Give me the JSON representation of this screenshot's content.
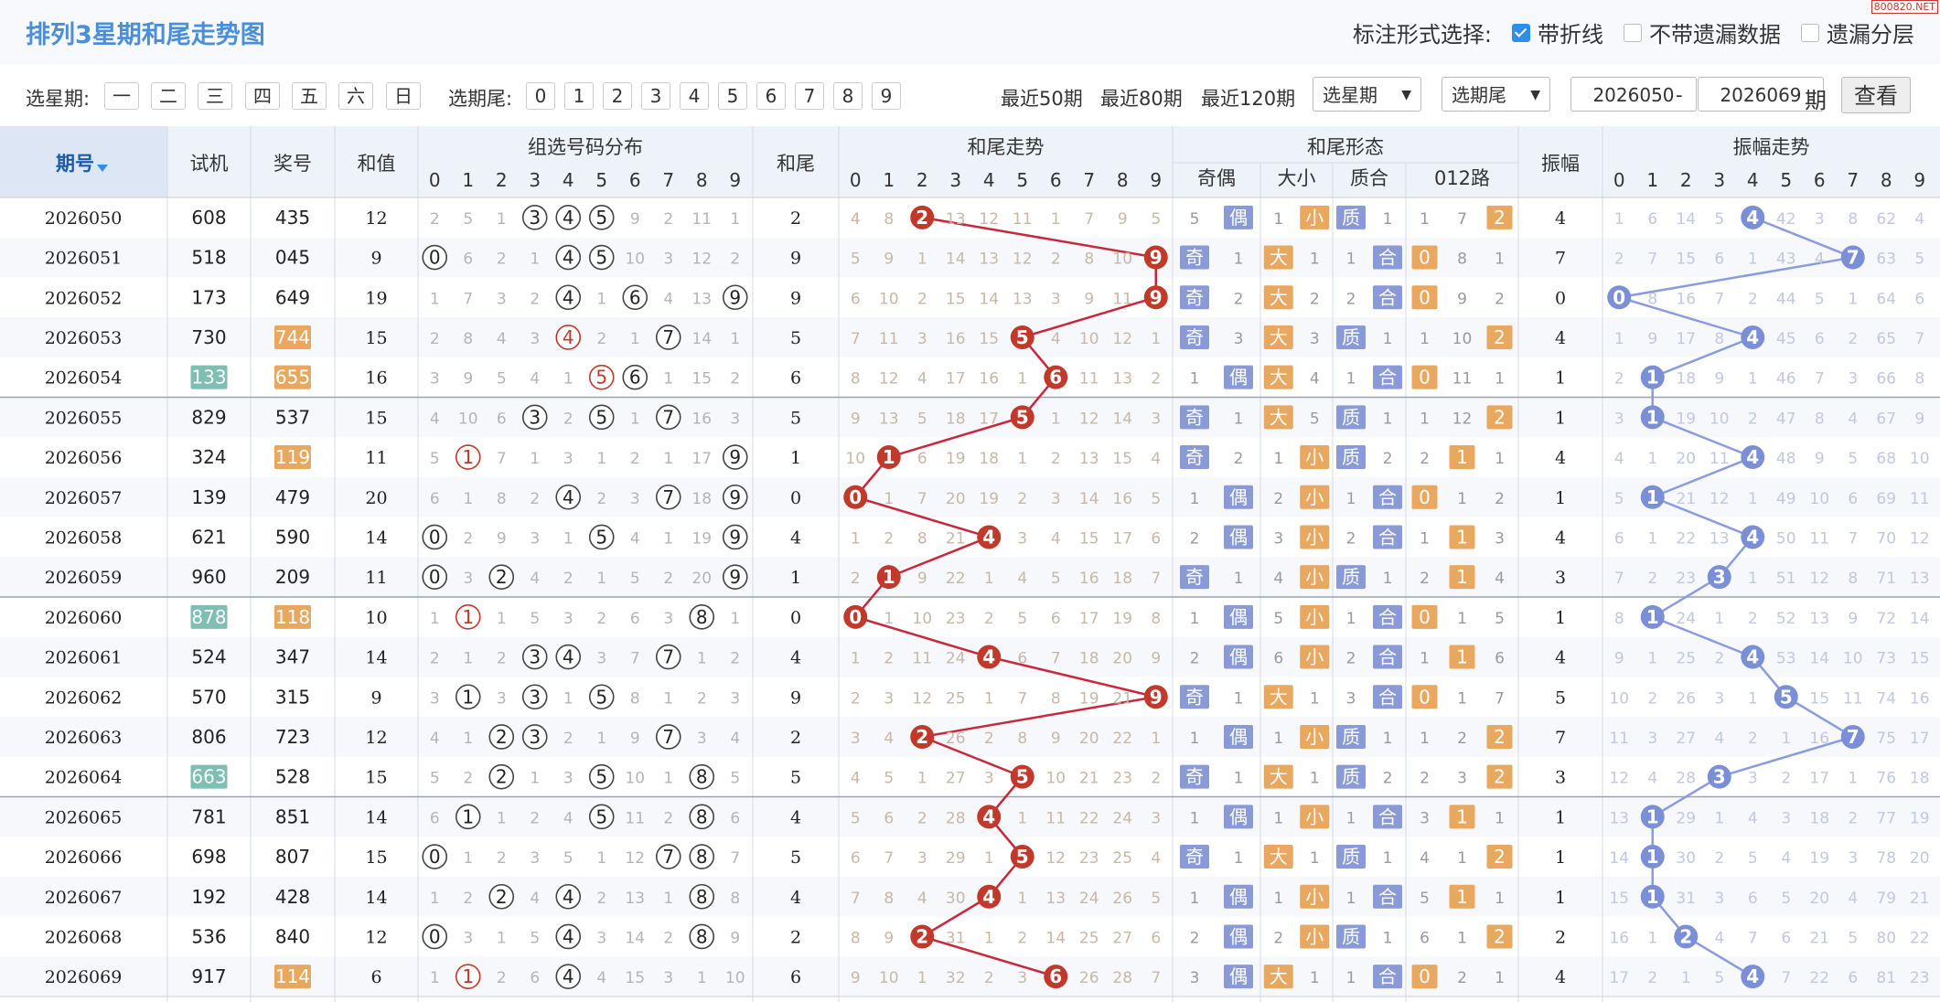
{
  "title": "排列3星期和尾走势图",
  "mark_options": {
    "label": "标注形式选择:",
    "items": [
      {
        "label": "带折线",
        "checked": true
      },
      {
        "label": "不带遗漏数据",
        "checked": false
      },
      {
        "label": "遗漏分层",
        "checked": false
      }
    ]
  },
  "watermark": "800820.NET",
  "toolbar": {
    "weekday_label": "选星期:",
    "weekdays": [
      "一",
      "二",
      "三",
      "四",
      "五",
      "六",
      "日"
    ],
    "tail_label": "选期尾:",
    "tails": [
      "0",
      "1",
      "2",
      "3",
      "4",
      "5",
      "6",
      "7",
      "8",
      "9"
    ],
    "recent": [
      "最近50期",
      "最近80期",
      "最近120期"
    ],
    "select_weekday": "选星期",
    "select_tail": "选期尾",
    "from": "2026050",
    "dash": "-",
    "to": "2026069",
    "period_label": "期",
    "query": "查看"
  },
  "headers": {
    "issue": "期号",
    "test": "试机",
    "prize": "奖号",
    "sum": "和值",
    "group_dist": "组选号码分布",
    "tail": "和尾",
    "tail_trend": "和尾走势",
    "tail_form": "和尾形态",
    "odd_even": "奇偶",
    "big_small": "大小",
    "prime": "质合",
    "road": "012路",
    "amp": "振幅",
    "amp_trend": "振幅走势",
    "digits": [
      "0",
      "1",
      "2",
      "3",
      "4",
      "5",
      "6",
      "7",
      "8",
      "9"
    ]
  },
  "colors": {
    "red_ball": "#c0392b",
    "blue_ball": "#7b8fd6",
    "orange_tag": "#e8a860",
    "blue_tag": "#8a9ad6",
    "teal_tag": "#7fbfb3"
  },
  "rows": [
    {
      "issue": "2026050",
      "test": "608",
      "prize": "435",
      "sum": "12",
      "tail": "2",
      "amp": "4",
      "dist": [
        "2",
        "5",
        "1",
        "3",
        "4",
        "5",
        "9",
        "2",
        "11",
        "1"
      ],
      "tt": [
        "4",
        "8",
        "2",
        "13",
        "12",
        "11",
        "1",
        "7",
        "9",
        "5"
      ],
      "oe": [
        "5",
        "偶"
      ],
      "bs": [
        "1",
        "小"
      ],
      "pc": [
        "质",
        "1"
      ],
      "rd": [
        "1",
        "7",
        "2"
      ],
      "at": [
        "1",
        "6",
        "14",
        "5",
        "4",
        "42",
        "3",
        "8",
        "62",
        "4"
      ]
    },
    {
      "issue": "2026051",
      "test": "518",
      "prize": "045",
      "sum": "9",
      "tail": "9",
      "amp": "7",
      "dist": [
        "0",
        "6",
        "2",
        "1",
        "4",
        "5",
        "10",
        "3",
        "12",
        "2"
      ],
      "tt": [
        "5",
        "9",
        "1",
        "14",
        "13",
        "12",
        "2",
        "8",
        "10",
        "9"
      ],
      "oe": [
        "奇",
        "1"
      ],
      "bs": [
        "大",
        "1"
      ],
      "pc": [
        "1",
        "合"
      ],
      "rd": [
        "0",
        "8",
        "1"
      ],
      "at": [
        "2",
        "7",
        "15",
        "6",
        "1",
        "43",
        "4",
        "7",
        "63",
        "5"
      ]
    },
    {
      "issue": "2026052",
      "test": "173",
      "prize": "649",
      "sum": "19",
      "tail": "9",
      "amp": "0",
      "dist": [
        "1",
        "7",
        "3",
        "2",
        "4",
        "1",
        "6",
        "4",
        "13",
        "9"
      ],
      "tt": [
        "6",
        "10",
        "2",
        "15",
        "14",
        "13",
        "3",
        "9",
        "11",
        "9"
      ],
      "oe": [
        "奇",
        "2"
      ],
      "bs": [
        "大",
        "2"
      ],
      "pc": [
        "2",
        "合"
      ],
      "rd": [
        "0",
        "9",
        "2"
      ],
      "at": [
        "0",
        "8",
        "16",
        "7",
        "2",
        "44",
        "5",
        "1",
        "64",
        "6"
      ]
    },
    {
      "issue": "2026053",
      "test": "730",
      "prize": "744",
      "sum": "15",
      "tail": "5",
      "amp": "4",
      "dist": [
        "2",
        "8",
        "4",
        "3",
        "4",
        "2",
        "1",
        "7",
        "14",
        "1"
      ],
      "tt": [
        "7",
        "11",
        "3",
        "16",
        "15",
        "5",
        "4",
        "10",
        "12",
        "1"
      ],
      "oe": [
        "奇",
        "3"
      ],
      "bs": [
        "大",
        "3"
      ],
      "pc": [
        "质",
        "1"
      ],
      "rd": [
        "1",
        "10",
        "2"
      ],
      "at": [
        "1",
        "9",
        "17",
        "8",
        "4",
        "45",
        "6",
        "2",
        "65",
        "7"
      ]
    },
    {
      "issue": "2026054",
      "test": "133",
      "prize": "655",
      "sum": "16",
      "tail": "6",
      "amp": "1",
      "dist": [
        "3",
        "9",
        "5",
        "4",
        "1",
        "5",
        "6",
        "1",
        "15",
        "2"
      ],
      "tt": [
        "8",
        "12",
        "4",
        "17",
        "16",
        "1",
        "6",
        "11",
        "13",
        "2"
      ],
      "oe": [
        "1",
        "偶"
      ],
      "bs": [
        "大",
        "4"
      ],
      "pc": [
        "1",
        "合"
      ],
      "rd": [
        "0",
        "11",
        "1"
      ],
      "at": [
        "2",
        "1",
        "18",
        "9",
        "1",
        "46",
        "7",
        "3",
        "66",
        "8"
      ]
    },
    {
      "issue": "2026055",
      "test": "829",
      "prize": "537",
      "sum": "15",
      "tail": "5",
      "amp": "1",
      "dist": [
        "4",
        "10",
        "6",
        "3",
        "2",
        "5",
        "1",
        "7",
        "16",
        "3"
      ],
      "tt": [
        "9",
        "13",
        "5",
        "18",
        "17",
        "5",
        "1",
        "12",
        "14",
        "3"
      ],
      "oe": [
        "奇",
        "1"
      ],
      "bs": [
        "大",
        "5"
      ],
      "pc": [
        "质",
        "1"
      ],
      "rd": [
        "1",
        "12",
        "2"
      ],
      "at": [
        "3",
        "1",
        "19",
        "10",
        "2",
        "47",
        "8",
        "4",
        "67",
        "9"
      ]
    },
    {
      "issue": "2026056",
      "test": "324",
      "prize": "119",
      "sum": "11",
      "tail": "1",
      "amp": "4",
      "dist": [
        "5",
        "1",
        "7",
        "1",
        "3",
        "1",
        "2",
        "1",
        "17",
        "9"
      ],
      "tt": [
        "10",
        "1",
        "6",
        "19",
        "18",
        "1",
        "2",
        "13",
        "15",
        "4"
      ],
      "oe": [
        "奇",
        "2"
      ],
      "bs": [
        "1",
        "小"
      ],
      "pc": [
        "质",
        "2"
      ],
      "rd": [
        "2",
        "1",
        "1"
      ],
      "at": [
        "4",
        "1",
        "20",
        "11",
        "4",
        "48",
        "9",
        "5",
        "68",
        "10"
      ]
    },
    {
      "issue": "2026057",
      "test": "139",
      "prize": "479",
      "sum": "20",
      "tail": "0",
      "amp": "1",
      "dist": [
        "6",
        "1",
        "8",
        "2",
        "4",
        "2",
        "3",
        "7",
        "18",
        "9"
      ],
      "tt": [
        "0",
        "1",
        "7",
        "20",
        "19",
        "2",
        "3",
        "14",
        "16",
        "5"
      ],
      "oe": [
        "1",
        "偶"
      ],
      "bs": [
        "2",
        "小"
      ],
      "pc": [
        "1",
        "合"
      ],
      "rd": [
        "0",
        "1",
        "2"
      ],
      "at": [
        "5",
        "1",
        "21",
        "12",
        "1",
        "49",
        "10",
        "6",
        "69",
        "11"
      ]
    },
    {
      "issue": "2026058",
      "test": "621",
      "prize": "590",
      "sum": "14",
      "tail": "4",
      "amp": "4",
      "dist": [
        "0",
        "2",
        "9",
        "3",
        "1",
        "5",
        "4",
        "1",
        "19",
        "9"
      ],
      "tt": [
        "1",
        "2",
        "8",
        "21",
        "4",
        "3",
        "4",
        "15",
        "17",
        "6"
      ],
      "oe": [
        "2",
        "偶"
      ],
      "bs": [
        "3",
        "小"
      ],
      "pc": [
        "2",
        "合"
      ],
      "rd": [
        "1",
        "1",
        "3"
      ],
      "at": [
        "6",
        "1",
        "22",
        "13",
        "4",
        "50",
        "11",
        "7",
        "70",
        "12"
      ]
    },
    {
      "issue": "2026059",
      "test": "960",
      "prize": "209",
      "sum": "11",
      "tail": "1",
      "amp": "3",
      "dist": [
        "0",
        "3",
        "2",
        "4",
        "2",
        "1",
        "5",
        "2",
        "20",
        "9"
      ],
      "tt": [
        "2",
        "1",
        "9",
        "22",
        "1",
        "4",
        "5",
        "16",
        "18",
        "7"
      ],
      "oe": [
        "奇",
        "1"
      ],
      "bs": [
        "4",
        "小"
      ],
      "pc": [
        "质",
        "1"
      ],
      "rd": [
        "2",
        "1",
        "4"
      ],
      "at": [
        "7",
        "2",
        "23",
        "3",
        "1",
        "51",
        "12",
        "8",
        "71",
        "13"
      ]
    },
    {
      "issue": "2026060",
      "test": "878",
      "prize": "118",
      "sum": "10",
      "tail": "0",
      "amp": "1",
      "dist": [
        "1",
        "1",
        "1",
        "5",
        "3",
        "2",
        "6",
        "3",
        "8",
        "1"
      ],
      "tt": [
        "0",
        "1",
        "10",
        "23",
        "2",
        "5",
        "6",
        "17",
        "19",
        "8"
      ],
      "oe": [
        "1",
        "偶"
      ],
      "bs": [
        "5",
        "小"
      ],
      "pc": [
        "1",
        "合"
      ],
      "rd": [
        "0",
        "1",
        "5"
      ],
      "at": [
        "8",
        "1",
        "24",
        "1",
        "2",
        "52",
        "13",
        "9",
        "72",
        "14"
      ]
    },
    {
      "issue": "2026061",
      "test": "524",
      "prize": "347",
      "sum": "14",
      "tail": "4",
      "amp": "4",
      "dist": [
        "2",
        "1",
        "2",
        "3",
        "4",
        "3",
        "7",
        "7",
        "1",
        "2"
      ],
      "tt": [
        "1",
        "2",
        "11",
        "24",
        "4",
        "6",
        "7",
        "18",
        "20",
        "9"
      ],
      "oe": [
        "2",
        "偶"
      ],
      "bs": [
        "6",
        "小"
      ],
      "pc": [
        "2",
        "合"
      ],
      "rd": [
        "1",
        "1",
        "6"
      ],
      "at": [
        "9",
        "1",
        "25",
        "2",
        "4",
        "53",
        "14",
        "10",
        "73",
        "15"
      ]
    },
    {
      "issue": "2026062",
      "test": "570",
      "prize": "315",
      "sum": "9",
      "tail": "9",
      "amp": "5",
      "dist": [
        "3",
        "1",
        "3",
        "3",
        "1",
        "5",
        "8",
        "1",
        "2",
        "3"
      ],
      "tt": [
        "2",
        "3",
        "12",
        "25",
        "1",
        "7",
        "8",
        "19",
        "21",
        "9"
      ],
      "oe": [
        "奇",
        "1"
      ],
      "bs": [
        "大",
        "1"
      ],
      "pc": [
        "3",
        "合"
      ],
      "rd": [
        "0",
        "1",
        "7"
      ],
      "at": [
        "10",
        "2",
        "26",
        "3",
        "1",
        "5",
        "15",
        "11",
        "74",
        "16"
      ]
    },
    {
      "issue": "2026063",
      "test": "806",
      "prize": "723",
      "sum": "12",
      "tail": "2",
      "amp": "7",
      "dist": [
        "4",
        "1",
        "2",
        "3",
        "2",
        "1",
        "9",
        "7",
        "3",
        "4"
      ],
      "tt": [
        "3",
        "4",
        "2",
        "26",
        "2",
        "8",
        "9",
        "20",
        "22",
        "1"
      ],
      "oe": [
        "1",
        "偶"
      ],
      "bs": [
        "1",
        "小"
      ],
      "pc": [
        "质",
        "1"
      ],
      "rd": [
        "1",
        "2",
        "2"
      ],
      "at": [
        "11",
        "3",
        "27",
        "4",
        "2",
        "1",
        "16",
        "7",
        "75",
        "17"
      ]
    },
    {
      "issue": "2026064",
      "test": "663",
      "prize": "528",
      "sum": "15",
      "tail": "5",
      "amp": "3",
      "dist": [
        "5",
        "2",
        "2",
        "1",
        "3",
        "5",
        "10",
        "1",
        "8",
        "5"
      ],
      "tt": [
        "4",
        "5",
        "1",
        "27",
        "3",
        "5",
        "10",
        "21",
        "23",
        "2"
      ],
      "oe": [
        "奇",
        "1"
      ],
      "bs": [
        "大",
        "1"
      ],
      "pc": [
        "质",
        "2"
      ],
      "rd": [
        "2",
        "3",
        "2"
      ],
      "at": [
        "12",
        "4",
        "28",
        "3",
        "3",
        "2",
        "17",
        "1",
        "76",
        "18"
      ]
    },
    {
      "issue": "2026065",
      "test": "781",
      "prize": "851",
      "sum": "14",
      "tail": "4",
      "amp": "1",
      "dist": [
        "6",
        "1",
        "1",
        "2",
        "4",
        "5",
        "11",
        "2",
        "8",
        "6"
      ],
      "tt": [
        "5",
        "6",
        "2",
        "28",
        "4",
        "1",
        "11",
        "22",
        "24",
        "3"
      ],
      "oe": [
        "1",
        "偶"
      ],
      "bs": [
        "1",
        "小"
      ],
      "pc": [
        "1",
        "合"
      ],
      "rd": [
        "3",
        "1",
        "1"
      ],
      "at": [
        "13",
        "1",
        "29",
        "1",
        "4",
        "3",
        "18",
        "2",
        "77",
        "19"
      ]
    },
    {
      "issue": "2026066",
      "test": "698",
      "prize": "807",
      "sum": "15",
      "tail": "5",
      "amp": "1",
      "dist": [
        "0",
        "1",
        "2",
        "3",
        "5",
        "1",
        "12",
        "7",
        "8",
        "7"
      ],
      "tt": [
        "6",
        "7",
        "3",
        "29",
        "1",
        "5",
        "12",
        "23",
        "25",
        "4"
      ],
      "oe": [
        "奇",
        "1"
      ],
      "bs": [
        "大",
        "1"
      ],
      "pc": [
        "质",
        "1"
      ],
      "rd": [
        "4",
        "1",
        "2"
      ],
      "at": [
        "14",
        "1",
        "30",
        "2",
        "5",
        "4",
        "19",
        "3",
        "78",
        "20"
      ]
    },
    {
      "issue": "2026067",
      "test": "192",
      "prize": "428",
      "sum": "14",
      "tail": "4",
      "amp": "1",
      "dist": [
        "1",
        "2",
        "2",
        "4",
        "4",
        "2",
        "13",
        "1",
        "8",
        "8"
      ],
      "tt": [
        "7",
        "8",
        "4",
        "30",
        "4",
        "1",
        "13",
        "24",
        "26",
        "5"
      ],
      "oe": [
        "1",
        "偶"
      ],
      "bs": [
        "1",
        "小"
      ],
      "pc": [
        "1",
        "合"
      ],
      "rd": [
        "5",
        "1",
        "1"
      ],
      "at": [
        "15",
        "1",
        "31",
        "3",
        "6",
        "5",
        "20",
        "4",
        "79",
        "21"
      ]
    },
    {
      "issue": "2026068",
      "test": "536",
      "prize": "840",
      "sum": "12",
      "tail": "2",
      "amp": "2",
      "dist": [
        "0",
        "3",
        "1",
        "5",
        "4",
        "3",
        "14",
        "2",
        "8",
        "9"
      ],
      "tt": [
        "8",
        "9",
        "2",
        "31",
        "1",
        "2",
        "14",
        "25",
        "27",
        "6"
      ],
      "oe": [
        "2",
        "偶"
      ],
      "bs": [
        "2",
        "小"
      ],
      "pc": [
        "质",
        "1"
      ],
      "rd": [
        "6",
        "1",
        "2"
      ],
      "at": [
        "16",
        "1",
        "2",
        "4",
        "7",
        "6",
        "21",
        "5",
        "80",
        "22"
      ]
    },
    {
      "issue": "2026069",
      "test": "917",
      "prize": "114",
      "sum": "6",
      "tail": "6",
      "amp": "4",
      "dist": [
        "1",
        "1",
        "2",
        "6",
        "4",
        "4",
        "15",
        "3",
        "1",
        "10"
      ],
      "tt": [
        "9",
        "10",
        "1",
        "32",
        "2",
        "3",
        "6",
        "26",
        "28",
        "7"
      ],
      "oe": [
        "3",
        "偶"
      ],
      "bs": [
        "大",
        "1"
      ],
      "pc": [
        "1",
        "合"
      ],
      "rd": [
        "0",
        "2",
        "1"
      ],
      "at": [
        "17",
        "2",
        "1",
        "5",
        "4",
        "7",
        "22",
        "6",
        "81",
        "23"
      ]
    }
  ]
}
